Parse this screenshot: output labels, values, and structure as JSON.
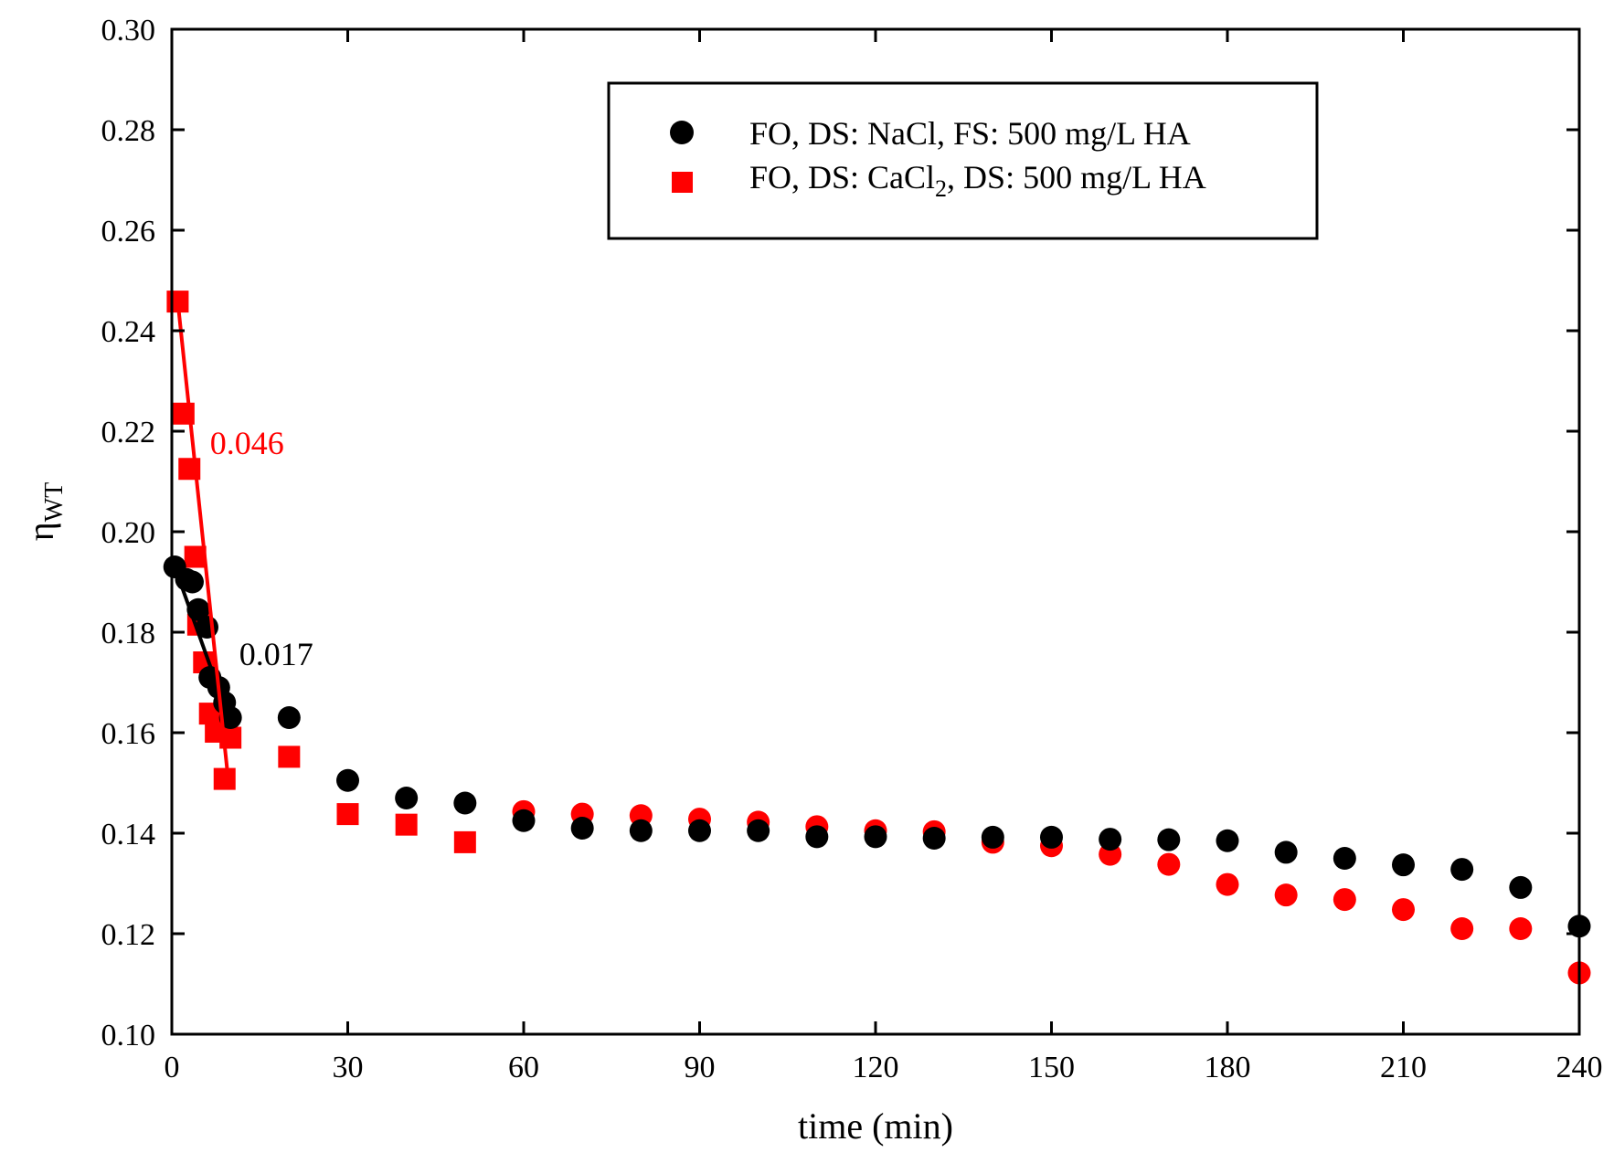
{
  "chart_data": {
    "type": "scatter",
    "title": "",
    "xlabel": "time (min)",
    "ylabel_main": "η",
    "ylabel_sub": "WT",
    "xlim": [
      0,
      240
    ],
    "ylim": [
      0.1,
      0.3
    ],
    "xticks": [
      0,
      30,
      60,
      90,
      120,
      150,
      180,
      210,
      240
    ],
    "xtick_labels": [
      "0",
      "30",
      "60",
      "90",
      "120",
      "150",
      "180",
      "210",
      "240"
    ],
    "yticks": [
      0.1,
      0.12,
      0.14,
      0.16,
      0.18,
      0.2,
      0.22,
      0.24,
      0.26,
      0.28,
      0.3
    ],
    "ytick_labels": [
      "0.10",
      "0.12",
      "0.14",
      "0.16",
      "0.18",
      "0.20",
      "0.22",
      "0.24",
      "0.26",
      "0.28",
      "0.30"
    ],
    "grid": false,
    "legend_position": "top-center",
    "series": [
      {
        "name": "FO, DS: NaCl, FS: 500 mg/L HA",
        "legend_label_parts": [
          "FO, DS: NaCl, FS: 500 mg/L HA"
        ],
        "marker": "circle",
        "color": "#000000",
        "points": [
          {
            "x": 0.5,
            "y": 0.193
          },
          {
            "x": 2.5,
            "y": 0.1905
          },
          {
            "x": 3.5,
            "y": 0.19
          },
          {
            "x": 4.5,
            "y": 0.1845
          },
          {
            "x": 6,
            "y": 0.181
          },
          {
            "x": 6.5,
            "y": 0.171
          },
          {
            "x": 8,
            "y": 0.169
          },
          {
            "x": 9,
            "y": 0.166
          },
          {
            "x": 10,
            "y": 0.163
          },
          {
            "x": 20,
            "y": 0.163
          },
          {
            "x": 30,
            "y": 0.1505
          },
          {
            "x": 40,
            "y": 0.147
          },
          {
            "x": 50,
            "y": 0.146
          },
          {
            "x": 60,
            "y": 0.1425
          },
          {
            "x": 70,
            "y": 0.141
          },
          {
            "x": 80,
            "y": 0.1405
          },
          {
            "x": 90,
            "y": 0.1405
          },
          {
            "x": 100,
            "y": 0.1405
          },
          {
            "x": 110,
            "y": 0.1393
          },
          {
            "x": 120,
            "y": 0.1393
          },
          {
            "x": 130,
            "y": 0.139
          },
          {
            "x": 140,
            "y": 0.1392
          },
          {
            "x": 150,
            "y": 0.1392
          },
          {
            "x": 160,
            "y": 0.1388
          },
          {
            "x": 170,
            "y": 0.1387
          },
          {
            "x": 180,
            "y": 0.1385
          },
          {
            "x": 190,
            "y": 0.1362
          },
          {
            "x": 200,
            "y": 0.135
          },
          {
            "x": 210,
            "y": 0.1337
          },
          {
            "x": 220,
            "y": 0.1328
          },
          {
            "x": 230,
            "y": 0.1292
          },
          {
            "x": 240,
            "y": 0.1215
          }
        ],
        "fit_line": {
          "x": [
            0.5,
            10
          ],
          "y": [
            0.193,
            0.162
          ]
        },
        "fit_label": "0.017",
        "fit_label_at": {
          "x": 11.5,
          "y": 0.1735
        }
      },
      {
        "name": "FO, DS: CaCl2, DS: 500 mg/L HA",
        "legend_label_parts": [
          "FO, DS: CaCl",
          "2",
          ", DS: 500 mg/L HA"
        ],
        "marker": "square",
        "marker_after_x": 50,
        "color": "#ff0000",
        "points": [
          {
            "x": 1,
            "y": 0.2458
          },
          {
            "x": 2,
            "y": 0.2235
          },
          {
            "x": 3,
            "y": 0.2125
          },
          {
            "x": 4,
            "y": 0.195
          },
          {
            "x": 4.5,
            "y": 0.1815
          },
          {
            "x": 5.5,
            "y": 0.174
          },
          {
            "x": 6.5,
            "y": 0.1638
          },
          {
            "x": 7.5,
            "y": 0.1602
          },
          {
            "x": 9,
            "y": 0.1508
          },
          {
            "x": 10,
            "y": 0.159
          },
          {
            "x": 20,
            "y": 0.1552
          },
          {
            "x": 30,
            "y": 0.1438
          },
          {
            "x": 40,
            "y": 0.1417
          },
          {
            "x": 50,
            "y": 0.1382
          },
          {
            "x": 60,
            "y": 0.1443
          },
          {
            "x": 70,
            "y": 0.1438
          },
          {
            "x": 80,
            "y": 0.1435
          },
          {
            "x": 90,
            "y": 0.1428
          },
          {
            "x": 100,
            "y": 0.1422
          },
          {
            "x": 110,
            "y": 0.1413
          },
          {
            "x": 120,
            "y": 0.1405
          },
          {
            "x": 130,
            "y": 0.1403
          },
          {
            "x": 140,
            "y": 0.1382
          },
          {
            "x": 150,
            "y": 0.1375
          },
          {
            "x": 160,
            "y": 0.1358
          },
          {
            "x": 170,
            "y": 0.1338
          },
          {
            "x": 180,
            "y": 0.1298
          },
          {
            "x": 190,
            "y": 0.1277
          },
          {
            "x": 200,
            "y": 0.1268
          },
          {
            "x": 210,
            "y": 0.1248
          },
          {
            "x": 220,
            "y": 0.121
          },
          {
            "x": 230,
            "y": 0.121
          },
          {
            "x": 240,
            "y": 0.1122
          }
        ],
        "fit_line": {
          "x": [
            1,
            9.5
          ],
          "y": [
            0.246,
            0.152
          ]
        },
        "fit_label": "0.046",
        "fit_label_at": {
          "x": 6.5,
          "y": 0.2155
        }
      }
    ]
  }
}
